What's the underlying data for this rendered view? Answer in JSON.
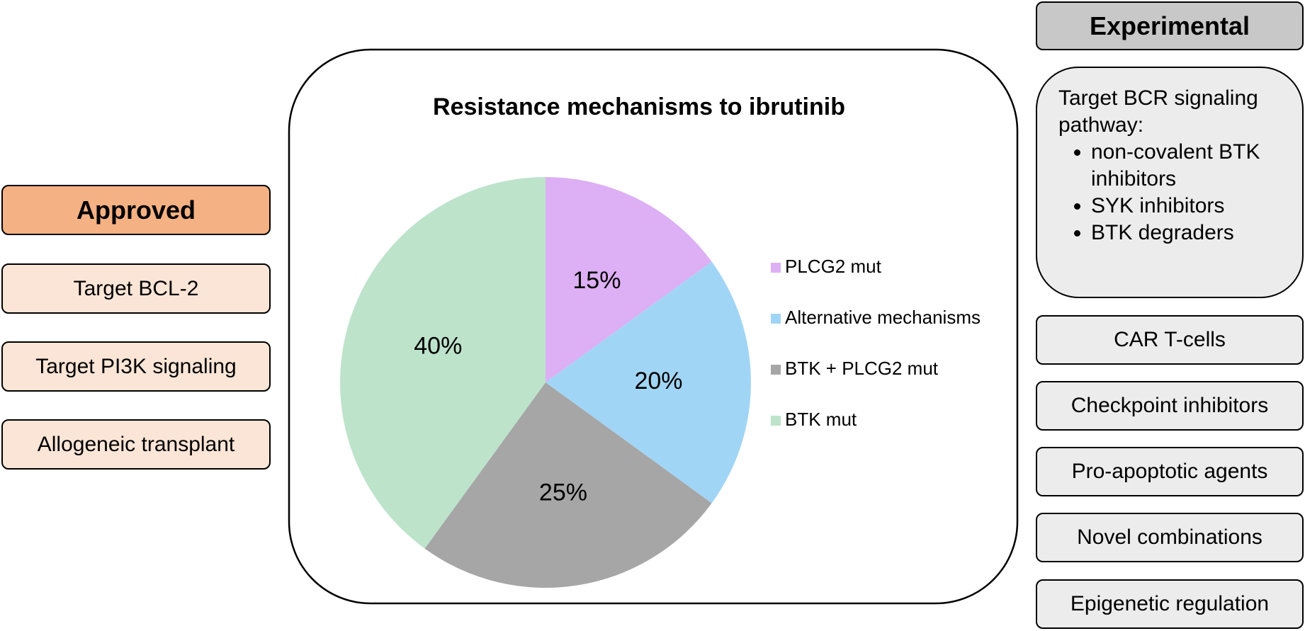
{
  "chart_data": {
    "type": "pie",
    "title": "Resistance mechanisms to ibrutinib",
    "categories": [
      "PLCG2 mut",
      "Alternative mechanisms",
      "BTK + PLCG2 mut",
      "BTK mut"
    ],
    "values": [
      15,
      20,
      25,
      40
    ],
    "value_labels": [
      "15%",
      "20%",
      "25%",
      "40%"
    ],
    "colors": [
      "#ddaff4",
      "#a1d5f5",
      "#a6a6a6",
      "#bde3cb"
    ],
    "legend": "right"
  },
  "approved": {
    "title": "Approved",
    "items": [
      "Target BCL-2",
      "Target PI3K signaling",
      "Allogeneic transplant"
    ]
  },
  "experimental": {
    "title": "Experimental",
    "bcr": {
      "heading": "Target BCR signaling pathway:",
      "bullets": [
        "non-covalent BTK inhibitors",
        "SYK inhibitors",
        "BTK degraders"
      ]
    },
    "items": [
      "CAR T-cells",
      "Checkpoint inhibitors",
      "Pro-apoptotic agents",
      "Novel combinations",
      "Epigenetic regulation"
    ]
  }
}
